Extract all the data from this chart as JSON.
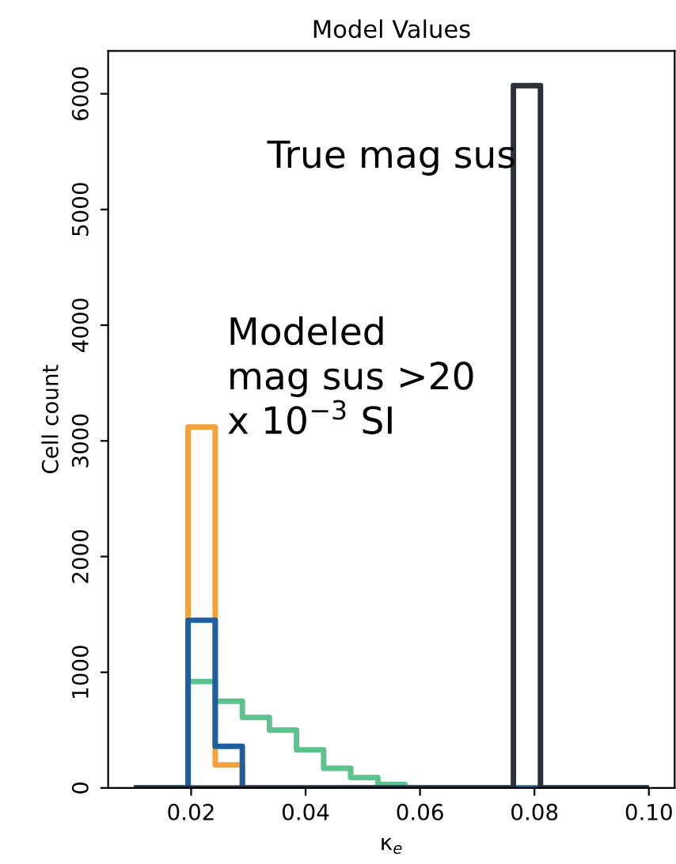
{
  "chart_data": {
    "type": "histogram",
    "title": "Model Values",
    "xlabel": "κ$_{e}$",
    "ylabel": "Cell count",
    "bins": [
      0.01,
      0.01474,
      0.01947,
      0.02421,
      0.02895,
      0.03368,
      0.03842,
      0.04316,
      0.04789,
      0.05263,
      0.05737,
      0.06211,
      0.06684,
      0.07158,
      0.07632,
      0.08105,
      0.08579,
      0.09053,
      0.09526,
      0.1
    ],
    "series": [
      {
        "color": "#f5a13c",
        "values": [
          0,
          0,
          3120,
          200,
          0,
          0,
          0,
          0,
          0,
          0,
          0,
          0,
          0,
          0,
          0,
          0,
          0,
          0,
          0
        ]
      },
      {
        "color": "#5cc38c",
        "values": [
          0,
          0,
          920,
          750,
          610,
          500,
          330,
          170,
          90,
          30,
          0,
          0,
          0,
          0,
          0,
          0,
          0,
          0,
          0
        ]
      },
      {
        "color": "#1f5f9f",
        "values": [
          0,
          0,
          1450,
          360,
          0,
          0,
          0,
          0,
          0,
          0,
          0,
          0,
          0,
          0,
          0,
          0,
          0,
          0,
          0
        ]
      },
      {
        "color": "#2b3338",
        "values": [
          0,
          0,
          0,
          0,
          0,
          0,
          0,
          0,
          0,
          0,
          0,
          0,
          0,
          0,
          6070,
          0,
          0,
          0,
          0
        ]
      }
    ],
    "xlim": [
      0.0055,
      0.1045
    ],
    "xticks": [
      {
        "value": 0.02,
        "label": "0.02"
      },
      {
        "value": 0.04,
        "label": "0.04"
      },
      {
        "value": 0.06,
        "label": "0.06"
      },
      {
        "value": 0.08,
        "label": "0.08"
      },
      {
        "value": 0.1,
        "label": "0.10"
      }
    ],
    "ylim": [
      0,
      6370
    ],
    "yticks": [
      0,
      1000,
      2000,
      3000,
      4000,
      5000,
      6000
    ],
    "grid": false,
    "legend": false,
    "annotations": [
      "True mag sus",
      "Modeled\nmag sus >20\nx 10$^{−3}$ SI"
    ]
  }
}
